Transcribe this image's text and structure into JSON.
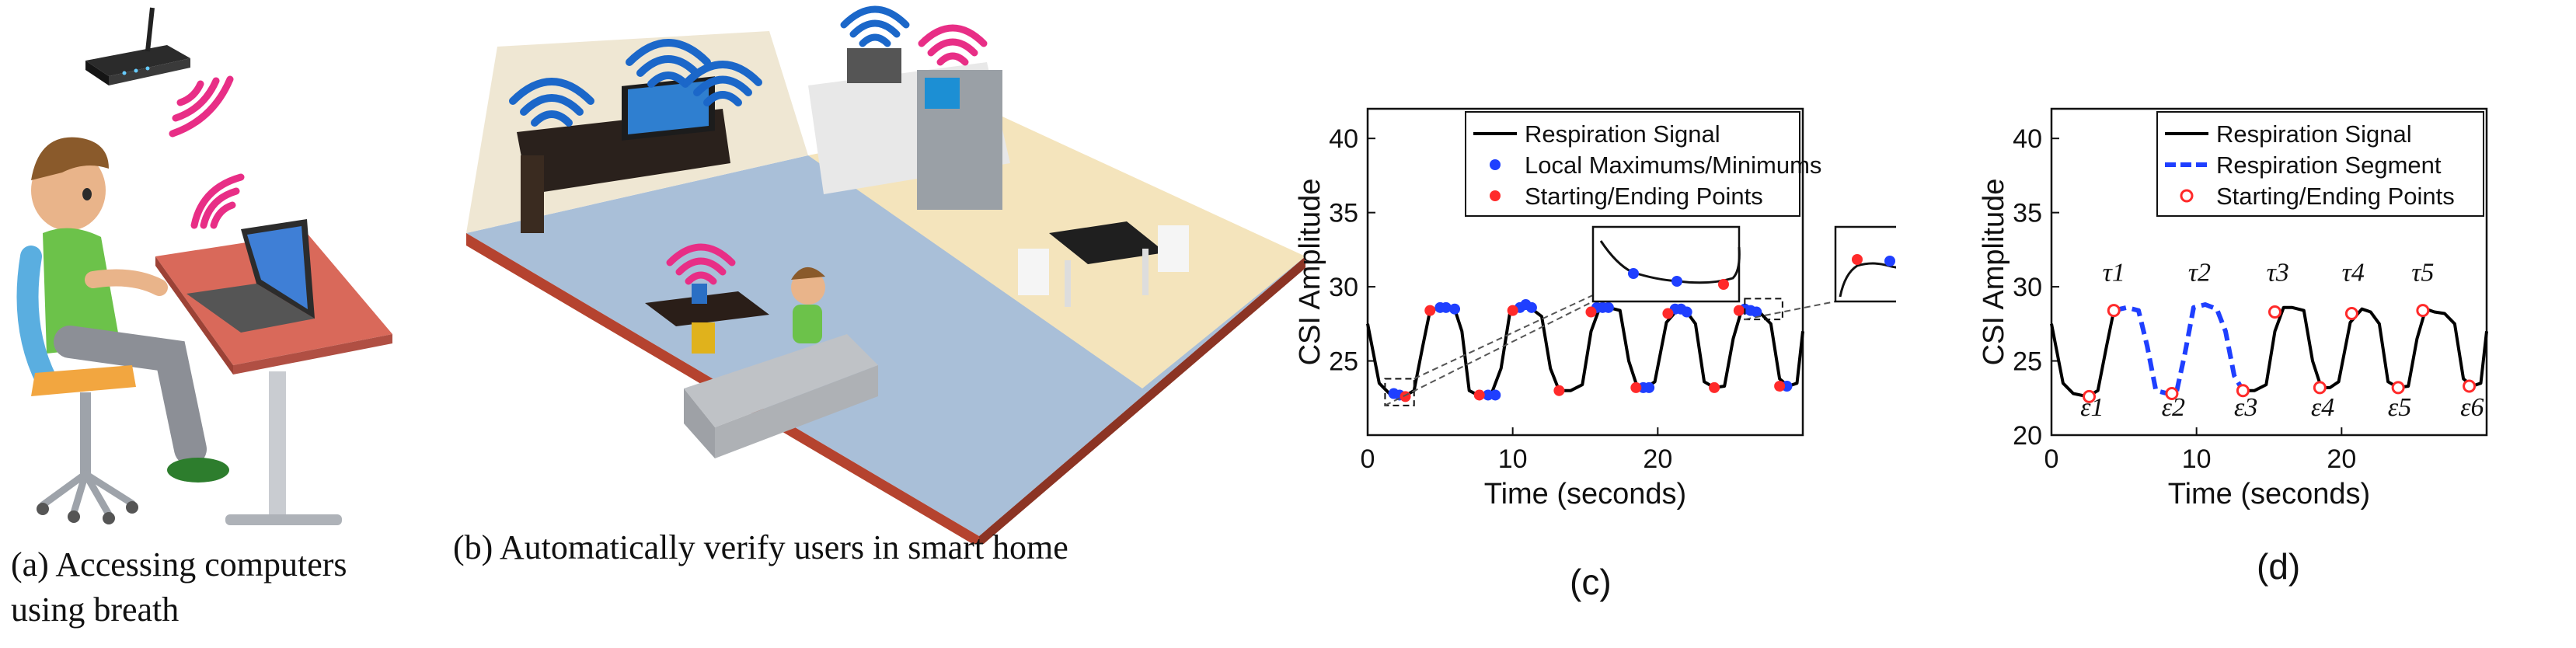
{
  "panel_a": {
    "caption_line1": "(a) Accessing computers",
    "caption_line2": "using breath"
  },
  "panel_b": {
    "caption": "(b) Automatically verify users in smart home"
  },
  "panel_c": {
    "caption": "(c)"
  },
  "panel_d": {
    "caption": "(d)"
  },
  "colors": {
    "signal": "#000000",
    "extrema": "#1f3fff",
    "endpoints": "#ff2a2a",
    "segment": "#1f3fff",
    "wifi_blue": "#1b67c9",
    "wifi_pink": "#e82e86"
  },
  "chart_data": [
    {
      "type": "line",
      "ylabel": "CSI Amplitude",
      "xlabel": "Time (seconds)",
      "xlim": [
        0,
        30
      ],
      "ylim": [
        20,
        42
      ],
      "xticks": [
        "0",
        "10",
        "20"
      ],
      "yticks": [
        "25",
        "30",
        "35",
        "40"
      ],
      "legend_position": "top-right",
      "series": [
        {
          "name": "Respiration Signal",
          "style": "line",
          "x": [
            0,
            0.8,
            1.5,
            2.5,
            3.2,
            3.8,
            4.3,
            5.0,
            6.0,
            6.5,
            7.0,
            7.6,
            8.5,
            9.2,
            9.8,
            10.4,
            11.2,
            12.0,
            12.6,
            13.2,
            14.0,
            14.8,
            15.4,
            16.0,
            16.6,
            17.4,
            18.0,
            18.6,
            19.2,
            19.8,
            20.6,
            21.4,
            22.0,
            22.6,
            23.2,
            23.9,
            24.6,
            25.2,
            25.8,
            26.4,
            27.1,
            27.8,
            28.4,
            29.0,
            29.6,
            30.0
          ],
          "y": [
            27.5,
            23.5,
            22.8,
            22.6,
            23.0,
            26.0,
            28.4,
            28.6,
            28.5,
            27.0,
            23.0,
            22.7,
            22.7,
            24.5,
            28.2,
            28.8,
            28.6,
            28.0,
            24.5,
            23.0,
            23.0,
            23.4,
            27.0,
            28.6,
            28.6,
            28.4,
            25.0,
            23.2,
            23.2,
            23.6,
            27.6,
            28.5,
            28.3,
            27.5,
            23.6,
            23.2,
            23.3,
            26.5,
            28.5,
            28.3,
            28.2,
            27.5,
            23.8,
            23.3,
            23.5,
            27.0
          ]
        },
        {
          "name": "Local Maximums/Minimums",
          "style": "marker",
          "x": [
            1.8,
            2.2,
            5.0,
            5.4,
            6.0,
            8.3,
            8.8,
            10.5,
            10.9,
            11.3,
            15.8,
            16.2,
            16.6,
            19.0,
            19.4,
            21.2,
            21.6,
            22.0,
            26.0,
            26.4,
            26.8,
            28.9
          ],
          "y": [
            22.8,
            22.7,
            28.6,
            28.6,
            28.5,
            22.7,
            22.7,
            28.6,
            28.8,
            28.6,
            28.6,
            28.6,
            28.6,
            23.2,
            23.2,
            28.5,
            28.5,
            28.3,
            28.5,
            28.4,
            28.3,
            23.3
          ]
        },
        {
          "name": "Starting/Ending Points",
          "style": "marker",
          "x": [
            2.6,
            4.3,
            7.7,
            10.0,
            13.2,
            15.4,
            18.5,
            20.7,
            23.9,
            25.6,
            28.4
          ],
          "y": [
            22.6,
            28.4,
            22.7,
            28.4,
            23.0,
            28.3,
            23.2,
            28.2,
            23.2,
            28.4,
            23.3
          ]
        }
      ]
    },
    {
      "type": "line",
      "ylabel": "CSI Amplitude",
      "xlabel": "Time (seconds)",
      "xlim": [
        0,
        30
      ],
      "ylim": [
        20,
        42
      ],
      "xticks": [
        "0",
        "10",
        "20"
      ],
      "yticks": [
        "20",
        "25",
        "30",
        "35",
        "40"
      ],
      "legend_position": "top-right",
      "annotations": [
        "τ1",
        "τ2",
        "τ3",
        "τ4",
        "τ5",
        "ε1",
        "ε2",
        "ε3",
        "ε4",
        "ε5",
        "ε6"
      ],
      "series": [
        {
          "name": "Respiration Signal",
          "style": "line",
          "x": [
            0,
            0.8,
            1.5,
            2.5,
            3.2,
            3.8,
            4.3
          ],
          "y": [
            27.5,
            23.5,
            22.8,
            22.6,
            23.0,
            26.0,
            28.4
          ]
        },
        {
          "name": "Respiration Segment",
          "style": "dash",
          "x": [
            4.3,
            5.2,
            6.0,
            6.6,
            7.2,
            8.0,
            8.6,
            9.2,
            9.8,
            10.6,
            11.4,
            12.0,
            12.6,
            13.2
          ],
          "y": [
            28.4,
            28.6,
            28.4,
            26.0,
            23.0,
            22.8,
            22.8,
            25.5,
            28.6,
            28.8,
            28.5,
            27.0,
            24.0,
            23.0
          ]
        },
        {
          "name": "",
          "style": "line",
          "x": [
            13.2,
            14.0,
            14.8,
            15.4,
            16.0,
            16.6,
            17.4,
            18.0,
            18.6,
            19.2,
            19.8,
            20.6,
            21.4,
            22.0,
            22.6,
            23.2,
            23.9,
            24.6,
            25.2,
            25.8,
            26.4,
            27.1,
            27.8,
            28.4,
            29.0,
            29.6,
            30.0
          ],
          "y": [
            23.0,
            23.0,
            23.4,
            27.0,
            28.6,
            28.6,
            28.4,
            25.0,
            23.2,
            23.2,
            23.6,
            27.6,
            28.5,
            28.3,
            27.5,
            23.6,
            23.2,
            23.3,
            26.5,
            28.5,
            28.3,
            28.2,
            27.5,
            23.8,
            23.3,
            23.5,
            27.0
          ]
        },
        {
          "name": "Starting/Ending Points",
          "style": "marker",
          "x": [
            2.6,
            4.3,
            8.3,
            13.2,
            15.4,
            18.5,
            20.7,
            23.9,
            25.6,
            28.8
          ],
          "y": [
            22.6,
            28.4,
            22.8,
            23.0,
            28.3,
            23.2,
            28.2,
            23.2,
            28.4,
            23.3
          ]
        }
      ]
    }
  ]
}
